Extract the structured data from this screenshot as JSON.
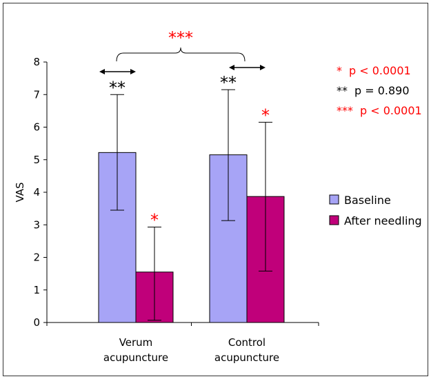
{
  "chart_data": {
    "type": "bar",
    "ylabel": "VAS",
    "xlabel": "",
    "ylim": [
      0,
      8
    ],
    "yticks": [
      "0",
      "1",
      "2",
      "3",
      "4",
      "5",
      "6",
      "7",
      "8"
    ],
    "grid": false,
    "legend_position": "right",
    "categories": [
      [
        "Verum",
        "acupuncture"
      ],
      [
        "Control",
        "acupuncture"
      ]
    ],
    "series": [
      {
        "name": "Baseline",
        "color": "#a7a4f6",
        "values": [
          5.22,
          5.15
        ],
        "error_low": [
          3.45,
          3.13
        ],
        "error_high": [
          7.0,
          7.15
        ]
      },
      {
        "name": "After needling",
        "color": "#c0007a",
        "values": [
          1.55,
          3.87
        ],
        "error_low": [
          0.07,
          1.58
        ],
        "error_high": [
          2.93,
          6.15
        ]
      }
    ],
    "significance": {
      "between_groups": {
        "marker": "***",
        "color": "#ff0000"
      },
      "baseline_bars": {
        "marker": "**",
        "color": "#000000"
      },
      "after_bars": {
        "marker": "*",
        "color": "#ff0000"
      }
    },
    "notes": [
      {
        "marker": "*",
        "text": "p < 0.0001",
        "color": "#ff0000"
      },
      {
        "marker": "**",
        "text": "p = 0.890",
        "color": "#000000"
      },
      {
        "marker": "***",
        "text": "p < 0.0001",
        "color": "#ff0000"
      }
    ]
  }
}
